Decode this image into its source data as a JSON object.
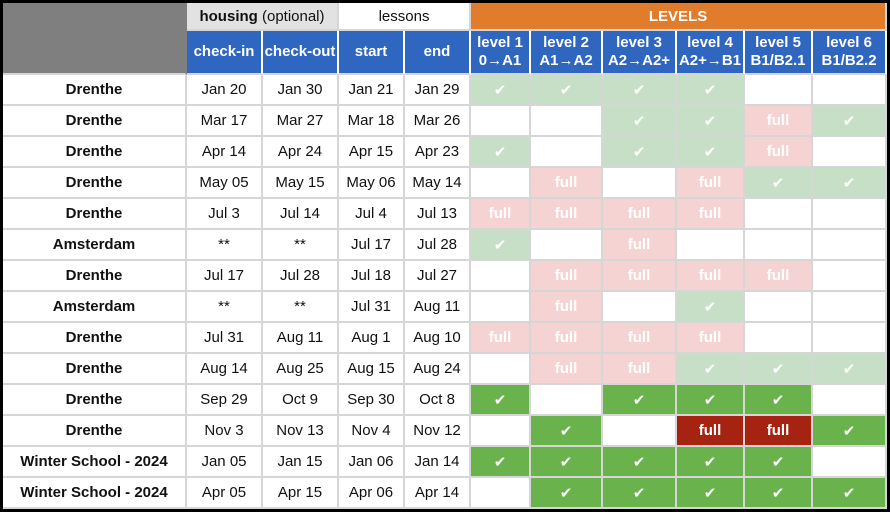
{
  "header": {
    "housing_bold": "housing",
    "housing_note": " (optional)",
    "lessons_label": "lessons",
    "levels_label": "LEVELS",
    "columns": {
      "checkin": "check-in",
      "checkout": "check-out",
      "start": "start",
      "end": "end"
    },
    "levels": [
      {
        "name": "level 1",
        "range": "0→A1"
      },
      {
        "name": "level 2",
        "range": "A1→A2"
      },
      {
        "name": "level 3",
        "range": "A2→A2+"
      },
      {
        "name": "level 4",
        "range": "A2+→B1"
      },
      {
        "name": "level 5",
        "range": "B1/B2.1"
      },
      {
        "name": "level 6",
        "range": "B1/B2.2"
      }
    ]
  },
  "status_symbols": {
    "check": "✔",
    "full": "full",
    "empty": ""
  },
  "colors": {
    "levels_header": "#e07c2c",
    "column_header": "#2e66c0",
    "check_light": "#c7dfc7",
    "full_light": "#f6d3d3",
    "check_dark": "#6ab24b",
    "full_dark": "#a62312"
  },
  "rows": [
    {
      "location": "Drenthe",
      "checkin": "Jan 20",
      "checkout": "Jan 30",
      "start": "Jan 21",
      "end": "Jan 29",
      "levels": [
        "check-light",
        "check-light",
        "check-light",
        "check-light",
        "empty",
        "empty"
      ]
    },
    {
      "location": "Drenthe",
      "checkin": "Mar 17",
      "checkout": "Mar 27",
      "start": "Mar 18",
      "end": "Mar 26",
      "levels": [
        "empty",
        "empty",
        "check-light",
        "check-light",
        "full-light",
        "check-light"
      ]
    },
    {
      "location": "Drenthe",
      "checkin": "Apr 14",
      "checkout": "Apr 24",
      "start": "Apr 15",
      "end": "Apr 23",
      "levels": [
        "check-light",
        "empty",
        "check-light",
        "check-light",
        "full-light",
        "empty"
      ]
    },
    {
      "location": "Drenthe",
      "checkin": "May 05",
      "checkout": "May 15",
      "start": "May 06",
      "end": "May 14",
      "levels": [
        "empty",
        "full-light",
        "empty",
        "full-light",
        "check-light",
        "check-light"
      ]
    },
    {
      "location": "Drenthe",
      "checkin": "Jul 3",
      "checkout": "Jul 14",
      "start": "Jul 4",
      "end": "Jul 13",
      "levels": [
        "full-light",
        "full-light",
        "full-light",
        "full-light",
        "empty",
        "empty"
      ]
    },
    {
      "location": "Amsterdam",
      "checkin": "**",
      "checkout": "**",
      "start": "Jul 17",
      "end": "Jul 28",
      "levels": [
        "check-light",
        "empty",
        "full-light",
        "empty",
        "empty",
        "empty"
      ]
    },
    {
      "location": "Drenthe",
      "checkin": "Jul 17",
      "checkout": "Jul 28",
      "start": "Jul 18",
      "end": "Jul 27",
      "levels": [
        "empty",
        "full-light",
        "full-light",
        "full-light",
        "full-light",
        "empty"
      ]
    },
    {
      "location": "Amsterdam",
      "checkin": "**",
      "checkout": "**",
      "start": "Jul 31",
      "end": "Aug 11",
      "levels": [
        "empty",
        "full-light",
        "empty",
        "check-light",
        "empty",
        "empty"
      ]
    },
    {
      "location": "Drenthe",
      "checkin": "Jul 31",
      "checkout": "Aug 11",
      "start": "Aug 1",
      "end": "Aug 10",
      "levels": [
        "full-light",
        "full-light",
        "full-light",
        "full-light",
        "empty",
        "empty"
      ]
    },
    {
      "location": "Drenthe",
      "checkin": "Aug 14",
      "checkout": "Aug 25",
      "start": "Aug 15",
      "end": "Aug 24",
      "levels": [
        "empty",
        "full-light",
        "full-light",
        "check-light",
        "check-light",
        "check-light"
      ]
    },
    {
      "location": "Drenthe",
      "checkin": "Sep 29",
      "checkout": "Oct 9",
      "start": "Sep 30",
      "end": "Oct 8",
      "levels": [
        "check-dark",
        "empty",
        "check-dark",
        "check-dark",
        "check-dark",
        "empty"
      ]
    },
    {
      "location": "Drenthe",
      "checkin": "Nov 3",
      "checkout": "Nov 13",
      "start": "Nov 4",
      "end": "Nov 12",
      "levels": [
        "empty",
        "check-dark",
        "empty",
        "full-dark",
        "full-dark",
        "check-dark"
      ]
    },
    {
      "location": "Winter School - 2024",
      "checkin": "Jan 05",
      "checkout": "Jan 15",
      "start": "Jan 06",
      "end": "Jan 14",
      "levels": [
        "check-dark",
        "check-dark",
        "check-dark",
        "check-dark",
        "check-dark",
        "empty"
      ]
    },
    {
      "location": "Winter School - 2024",
      "checkin": "Apr 05",
      "checkout": "Apr 15",
      "start": "Apr 06",
      "end": "Apr 14",
      "levels": [
        "empty",
        "check-dark",
        "check-dark",
        "check-dark",
        "check-dark",
        "check-dark"
      ]
    }
  ]
}
